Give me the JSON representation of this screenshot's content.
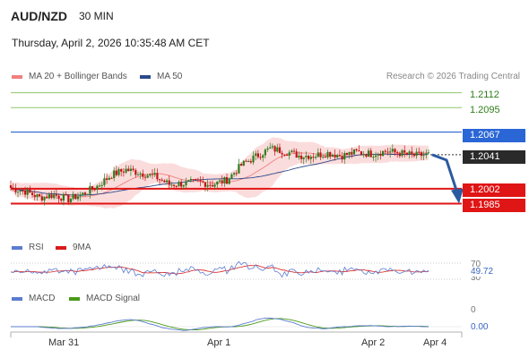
{
  "header": {
    "symbol": "AUD/NZD",
    "timeframe": "30 MIN",
    "datetime": "Thursday, April 2, 2026 10:35:48 AM CET"
  },
  "legend": {
    "ma20_label": "MA 20 + Bollinger Bands",
    "ma50_label": "MA 50",
    "ma20_color": "#f08080",
    "ma50_color": "#2c4a8c"
  },
  "credit": "Research © 2026 Trading Central",
  "price_levels": [
    {
      "label": "1.2112",
      "value": 1.2112,
      "kind": "target"
    },
    {
      "label": "1.2095",
      "value": 1.2095,
      "kind": "target"
    },
    {
      "label": "1.2067",
      "value": 1.2067,
      "kind": "pivot"
    },
    {
      "label": "1.2041",
      "value": 1.2041,
      "kind": "last"
    },
    {
      "label": "1.2002",
      "value": 1.2002,
      "kind": "support"
    },
    {
      "label": "1.1985",
      "value": 1.1985,
      "kind": "support"
    }
  ],
  "colors": {
    "target": "#8fc76a",
    "pivot": "#2a66d6",
    "support": "#e01515",
    "bull": "#2d7d1f",
    "bear": "#c01414",
    "bollinger_fill": "#fbdcdc",
    "arrow": "#2c5aa0"
  },
  "rsi": {
    "label": "RSI",
    "ma_label": "9MA",
    "rsi_color": "#5b7ccf",
    "ma_color": "#d81b1b",
    "levels": [
      "70",
      "30"
    ],
    "value": "49.72"
  },
  "macd": {
    "label": "MACD",
    "signal_label": "MACD Signal",
    "macd_color": "#5b7ccf",
    "signal_color": "#4a9a1a",
    "zero_label": "0",
    "value": "0.00"
  },
  "x_axis": [
    "Mar 31",
    "Apr 1",
    "Apr 2",
    "Apr 4"
  ],
  "chart_data": {
    "type": "candlestick",
    "title": "AUD/NZD",
    "timeframe": "30 MIN",
    "ylim": [
      1.1965,
      1.2125
    ],
    "x_labels": [
      "Mar 31",
      "Apr 1",
      "Apr 2",
      "Apr 4"
    ],
    "resistance_lines": [
      1.2112,
      1.2095
    ],
    "pivot": 1.2067,
    "last_price": 1.2041,
    "support_lines": [
      1.2002,
      1.1985
    ],
    "close_path": [
      [
        0,
        1.2003
      ],
      [
        6,
        1.1999
      ],
      [
        12,
        1.1992
      ],
      [
        18,
        1.1995
      ],
      [
        24,
        1.199
      ],
      [
        30,
        1.1996
      ],
      [
        36,
        1.2005
      ],
      [
        42,
        1.2018
      ],
      [
        48,
        1.2024
      ],
      [
        54,
        1.202
      ],
      [
        60,
        1.2016
      ],
      [
        66,
        1.2007
      ],
      [
        72,
        1.2008
      ],
      [
        78,
        1.201
      ],
      [
        84,
        1.2007
      ],
      [
        90,
        1.2012
      ],
      [
        96,
        1.2029
      ],
      [
        102,
        1.2039
      ],
      [
        108,
        1.2048
      ],
      [
        114,
        1.2045
      ],
      [
        120,
        1.204
      ],
      [
        126,
        1.204
      ],
      [
        132,
        1.2043
      ],
      [
        138,
        1.204
      ],
      [
        144,
        1.2044
      ],
      [
        150,
        1.2042
      ],
      [
        156,
        1.2045
      ],
      [
        162,
        1.2043
      ],
      [
        168,
        1.204
      ],
      [
        174,
        1.2041
      ]
    ],
    "forecast": {
      "from": 1.2041,
      "to": 1.1985
    }
  }
}
